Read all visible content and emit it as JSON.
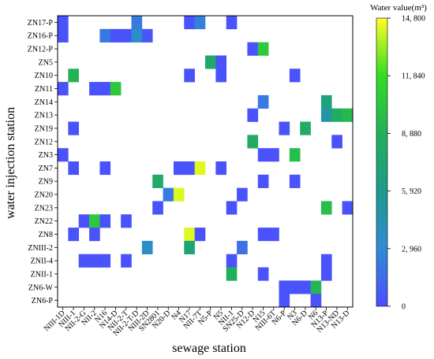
{
  "chart_data": {
    "type": "heatmap",
    "xlabel": "sewage station",
    "ylabel": "water injection station",
    "x_categories": [
      "NIII-1D",
      "NIII-1",
      "NII-2-G",
      "NII-2",
      "N16",
      "N14-D",
      "NII-2-T",
      "NII-2-T-D",
      "NIII-2D",
      "SN2801",
      "N20-D",
      "N4",
      "N17",
      "NII-7T",
      "N5-P",
      "N5",
      "NII-1",
      "SN25-D",
      "N12-D",
      "N15",
      "NIII-6T",
      "N6-P",
      "N3",
      "N6-D",
      "N6",
      "N13-P",
      "N13-ND",
      "N13-D"
    ],
    "y_categories": [
      "ZN17-P",
      "ZN16-P",
      "ZN12-P",
      "ZN5",
      "ZN10",
      "ZN11",
      "ZN14",
      "ZN13",
      "ZN19",
      "ZN12",
      "ZN3",
      "ZN7",
      "ZN9",
      "ZN20",
      "ZN23",
      "ZN22",
      "ZN8",
      "ZNIII-2",
      "ZNII-4",
      "ZNII-1",
      "ZN6-W",
      "ZN6-P"
    ],
    "colorbar": {
      "title": "Water value(m³)",
      "min": 0,
      "max": 14800,
      "ticks": [
        "0",
        "2, 960",
        "5, 920",
        "8, 880",
        "11, 840",
        "14, 800"
      ],
      "colors": [
        "#4d4dff",
        "#2f8bd6",
        "#1e9a8c",
        "#22b05a",
        "#33dd22",
        "#ffff22"
      ]
    },
    "cells": [
      {
        "y": "ZN17-P",
        "x": "NIII-1D",
        "value": 300
      },
      {
        "y": "ZN17-P",
        "x": "NII-2-T-D",
        "value": 2200
      },
      {
        "y": "ZN17-P",
        "x": "N17",
        "value": 300
      },
      {
        "y": "ZN17-P",
        "x": "NII-7T",
        "value": 2500
      },
      {
        "y": "ZN17-P",
        "x": "NII-1",
        "value": 300
      },
      {
        "y": "ZN16-P",
        "x": "NIII-1D",
        "value": 300
      },
      {
        "y": "ZN16-P",
        "x": "N16",
        "value": 2000
      },
      {
        "y": "ZN16-P",
        "x": "N14-D",
        "value": 300
      },
      {
        "y": "ZN16-P",
        "x": "NII-2-T",
        "value": 300
      },
      {
        "y": "ZN16-P",
        "x": "NII-2-T-D",
        "value": 3500
      },
      {
        "y": "ZN16-P",
        "x": "NIII-2D",
        "value": 500
      },
      {
        "y": "ZN12-P",
        "x": "N12-D",
        "value": 300
      },
      {
        "y": "ZN12-P",
        "x": "N15",
        "value": 10500
      },
      {
        "y": "ZN5",
        "x": "N5-P",
        "value": 8000
      },
      {
        "y": "ZN5",
        "x": "N5",
        "value": 300
      },
      {
        "y": "ZN10",
        "x": "NIII-1",
        "value": 9000
      },
      {
        "y": "ZN10",
        "x": "N17",
        "value": 300
      },
      {
        "y": "ZN10",
        "x": "N5",
        "value": 300
      },
      {
        "y": "ZN10",
        "x": "N3",
        "value": 300
      },
      {
        "y": "ZN11",
        "x": "NIII-1D",
        "value": 300
      },
      {
        "y": "ZN11",
        "x": "NII-2",
        "value": 300
      },
      {
        "y": "ZN11",
        "x": "N16",
        "value": 300
      },
      {
        "y": "ZN11",
        "x": "N14-D",
        "value": 10500
      },
      {
        "y": "ZN14",
        "x": "N15",
        "value": 2100
      },
      {
        "y": "ZN14",
        "x": "N13-P",
        "value": 7000
      },
      {
        "y": "ZN13",
        "x": "N12-D",
        "value": 300
      },
      {
        "y": "ZN13",
        "x": "N13-P",
        "value": 4800
      },
      {
        "y": "ZN13",
        "x": "N13-ND",
        "value": 8500
      },
      {
        "y": "ZN13",
        "x": "N13-D",
        "value": 9500
      },
      {
        "y": "ZN19",
        "x": "NIII-1",
        "value": 300
      },
      {
        "y": "ZN19",
        "x": "N6-P",
        "value": 300
      },
      {
        "y": "ZN19",
        "x": "N6-D",
        "value": 8200
      },
      {
        "y": "ZN12",
        "x": "N12-D",
        "value": 8200
      },
      {
        "y": "ZN12",
        "x": "N13-ND",
        "value": 300
      },
      {
        "y": "ZN3",
        "x": "NIII-1D",
        "value": 300
      },
      {
        "y": "ZN3",
        "x": "N15",
        "value": 300
      },
      {
        "y": "ZN3",
        "x": "NIII-6T",
        "value": 300
      },
      {
        "y": "ZN3",
        "x": "N3",
        "value": 9800
      },
      {
        "y": "ZN7",
        "x": "NIII-1",
        "value": 300
      },
      {
        "y": "ZN7",
        "x": "N16",
        "value": 300
      },
      {
        "y": "ZN7",
        "x": "N4",
        "value": 300
      },
      {
        "y": "ZN7",
        "x": "N17",
        "value": 300
      },
      {
        "y": "ZN7",
        "x": "NII-7T",
        "value": 14300
      },
      {
        "y": "ZN7",
        "x": "N5",
        "value": 300
      },
      {
        "y": "ZN9",
        "x": "SN2801",
        "value": 8000
      },
      {
        "y": "ZN9",
        "x": "N15",
        "value": 300
      },
      {
        "y": "ZN9",
        "x": "N3",
        "value": 300
      },
      {
        "y": "ZN20",
        "x": "N20-D",
        "value": 2200
      },
      {
        "y": "ZN20",
        "x": "N4",
        "value": 14300
      },
      {
        "y": "ZN20",
        "x": "SN25-D",
        "value": 300
      },
      {
        "y": "ZN23",
        "x": "SN2801",
        "value": 300
      },
      {
        "y": "ZN23",
        "x": "NII-1",
        "value": 300
      },
      {
        "y": "ZN23",
        "x": "N13-P",
        "value": 9800
      },
      {
        "y": "ZN23",
        "x": "N13-D",
        "value": 300
      },
      {
        "y": "ZN22",
        "x": "NII-2-G",
        "value": 300
      },
      {
        "y": "ZN22",
        "x": "NII-2",
        "value": 10500
      },
      {
        "y": "ZN22",
        "x": "N16",
        "value": 300
      },
      {
        "y": "ZN22",
        "x": "NII-2-T",
        "value": 300
      },
      {
        "y": "ZN8",
        "x": "NIII-1",
        "value": 300
      },
      {
        "y": "ZN8",
        "x": "NII-2",
        "value": 300
      },
      {
        "y": "ZN8",
        "x": "N17",
        "value": 14300
      },
      {
        "y": "ZN8",
        "x": "NII-7T",
        "value": 300
      },
      {
        "y": "ZN8",
        "x": "N15",
        "value": 300
      },
      {
        "y": "ZN8",
        "x": "NIII-6T",
        "value": 300
      },
      {
        "y": "ZNIII-2",
        "x": "NIII-2D",
        "value": 3500
      },
      {
        "y": "ZNIII-2",
        "x": "N17",
        "value": 7200
      },
      {
        "y": "ZNIII-2",
        "x": "SN25-D",
        "value": 1800
      },
      {
        "y": "ZNII-4",
        "x": "NII-2-G",
        "value": 300
      },
      {
        "y": "ZNII-4",
        "x": "NII-2",
        "value": 300
      },
      {
        "y": "ZNII-4",
        "x": "N16",
        "value": 300
      },
      {
        "y": "ZNII-4",
        "x": "NII-2-T",
        "value": 300
      },
      {
        "y": "ZNII-4",
        "x": "NII-1",
        "value": 300
      },
      {
        "y": "ZNII-4",
        "x": "N13-P",
        "value": 300
      },
      {
        "y": "ZNII-1",
        "x": "NII-1",
        "value": 8800
      },
      {
        "y": "ZNII-1",
        "x": "N15",
        "value": 300
      },
      {
        "y": "ZNII-1",
        "x": "N13-P",
        "value": 300
      },
      {
        "y": "ZN6-W",
        "x": "N6-P",
        "value": 300
      },
      {
        "y": "ZN6-W",
        "x": "N3",
        "value": 300
      },
      {
        "y": "ZN6-W",
        "x": "N6-D",
        "value": 300
      },
      {
        "y": "ZN6-W",
        "x": "N6",
        "value": 9200
      },
      {
        "y": "ZN6-P",
        "x": "N6-P",
        "value": 300
      },
      {
        "y": "ZN6-P",
        "x": "N6",
        "value": 300
      }
    ]
  }
}
